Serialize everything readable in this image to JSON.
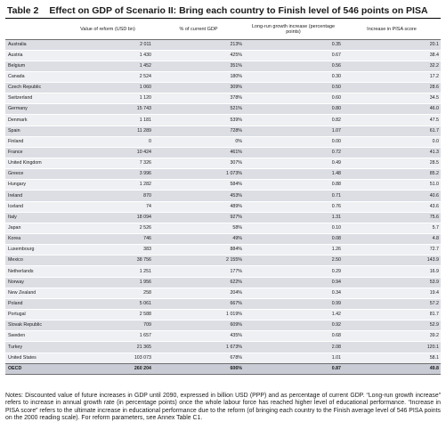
{
  "title": {
    "label": "Table 2",
    "text": "Effect on GDP of Scenario II: Bring each country to Finish level of 546 points on PISA"
  },
  "table": {
    "columns": [
      "",
      "Value of reform (USD bn)",
      "% of current GDP",
      "Long-run growth increase (percentage points)",
      "Increase in PISA score"
    ],
    "rows": [
      [
        "Australia",
        "2 011",
        "213%",
        "0.35",
        "20.1"
      ],
      [
        "Austria",
        "1 430",
        "425%",
        "0.67",
        "38.4"
      ],
      [
        "Belgium",
        "1 452",
        "351%",
        "0.56",
        "32.2"
      ],
      [
        "Canada",
        "2 524",
        "180%",
        "0.30",
        "17.2"
      ],
      [
        "Czech Republic",
        "1 060",
        "309%",
        "0.50",
        "28.6"
      ],
      [
        "Switzerland",
        "1 120",
        "378%",
        "0.60",
        "34.5"
      ],
      [
        "Germany",
        "15 743",
        "521%",
        "0.80",
        "46.0"
      ],
      [
        "Denmark",
        "1 181",
        "539%",
        "0.82",
        "47.5"
      ],
      [
        "Spain",
        "11 289",
        "728%",
        "1.07",
        "61.7"
      ],
      [
        "Finland",
        "0",
        "0%",
        "0.00",
        "0.0"
      ],
      [
        "France",
        "10 424",
        "461%",
        "0.72",
        "41.3"
      ],
      [
        "United Kingdom",
        "7 326",
        "307%",
        "0.49",
        "28.5"
      ],
      [
        "Greece",
        "3 996",
        "1 073%",
        "1.48",
        "85.2"
      ],
      [
        "Hungary",
        "1 282",
        "584%",
        "0.88",
        "51.0"
      ],
      [
        "Ireland",
        "870",
        "453%",
        "0.71",
        "40.6"
      ],
      [
        "Iceland",
        "74",
        "489%",
        "0.76",
        "43.6"
      ],
      [
        "Italy",
        "18 094",
        "927%",
        "1.31",
        "75.6"
      ],
      [
        "Japan",
        "2 526",
        "58%",
        "0.10",
        "5.7"
      ],
      [
        "Korea",
        "746",
        "49%",
        "0.08",
        "4.8"
      ],
      [
        "Luxembourg",
        "383",
        "884%",
        "1.26",
        "72.7"
      ],
      [
        "Mexico",
        "38 756",
        "2 155%",
        "2.50",
        "143.9"
      ],
      [
        "Netherlands",
        "1 251",
        "177%",
        "0.29",
        "16.9"
      ],
      [
        "Norway",
        "1 956",
        "622%",
        "0.94",
        "53.9"
      ],
      [
        "New Zealand",
        "258",
        "204%",
        "0.34",
        "19.4"
      ],
      [
        "Poland",
        "5 061",
        "667%",
        "0.99",
        "57.2"
      ],
      [
        "Portugal",
        "2 588",
        "1 019%",
        "1.42",
        "81.7"
      ],
      [
        "Slovak Republic",
        "709",
        "609%",
        "0.92",
        "52.9"
      ],
      [
        "Sweden",
        "1 657",
        "435%",
        "0.68",
        "39.2"
      ],
      [
        "Turkey",
        "21 365",
        "1 673%",
        "2.08",
        "120.1"
      ],
      [
        "United States",
        "103 073",
        "678%",
        "1.01",
        "58.1"
      ]
    ],
    "total": [
      "OECD",
      "260 204",
      "606%",
      "0.87",
      "49.8"
    ]
  },
  "notes": "Notes: Discounted value of future increases in GDP until 2090, expressed in billion USD (PPP) and as percentage of current GDP. “Long-run growth increase” refers to increase in annual growth rate (in percentage points) once the whole labour force has reached higher level of educational performance. “Increase in PISA score” refers to the ultimate increase in educational performance due to the reform (of bringing each country to the Finish average level of 546 PISA points on the 2000 reading scale). For reform parameters, see Annex Table C1."
}
